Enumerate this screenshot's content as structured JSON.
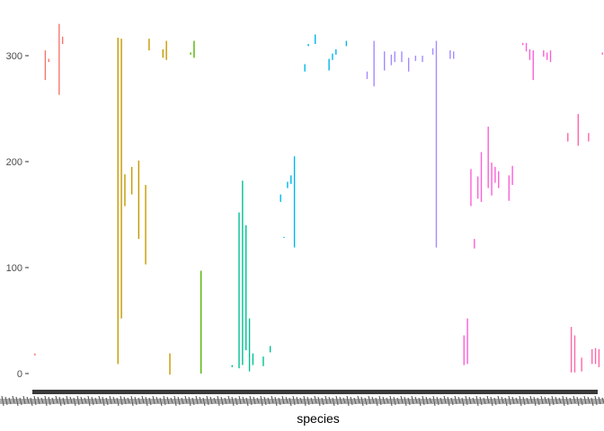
{
  "chart_data": {
    "type": "range",
    "title": "",
    "xlabel": "species",
    "ylabel": "",
    "ylim": [
      -10,
      330
    ],
    "yticks": [
      0,
      100,
      200,
      300
    ],
    "grid": false,
    "legend": "none",
    "x_tick_labels_overplotted": true,
    "series": [
      {
        "color": "#F8766D",
        "segments": [
          [
            1,
            17,
            19
          ],
          [
            4,
            277,
            305
          ],
          [
            5,
            294,
            297
          ],
          [
            8,
            263,
            330
          ],
          [
            9,
            311,
            318
          ]
        ]
      },
      {
        "color": "#C49A00",
        "segments": [
          [
            25,
            9,
            317
          ],
          [
            26,
            52,
            316
          ],
          [
            27,
            158,
            188
          ],
          [
            29,
            169,
            195
          ],
          [
            31,
            127,
            201
          ],
          [
            33,
            103,
            178
          ],
          [
            34,
            305,
            316
          ],
          [
            38,
            298,
            306
          ],
          [
            39,
            296,
            314
          ],
          [
            40,
            -1,
            19
          ]
        ]
      },
      {
        "color": "#53B400",
        "segments": [
          [
            46,
            301,
            303
          ],
          [
            47,
            298,
            314
          ],
          [
            49,
            0,
            97
          ]
        ]
      },
      {
        "color": "#00C094",
        "segments": [
          [
            58,
            6,
            8
          ],
          [
            60,
            5,
            152
          ],
          [
            61,
            8,
            182
          ],
          [
            62,
            22,
            140
          ],
          [
            63,
            2,
            52
          ],
          [
            64,
            8,
            19
          ],
          [
            67,
            7,
            16
          ],
          [
            69,
            20,
            26
          ]
        ]
      },
      {
        "color": "#00B6EB",
        "segments": [
          [
            72,
            162,
            169
          ],
          [
            73,
            128,
            129
          ],
          [
            74,
            175,
            181
          ],
          [
            75,
            179,
            187
          ],
          [
            76,
            119,
            205
          ],
          [
            79,
            285,
            292
          ],
          [
            80,
            309,
            311
          ],
          [
            82,
            311,
            320
          ],
          [
            86,
            286,
            297
          ],
          [
            87,
            296,
            302
          ],
          [
            88,
            301,
            306
          ],
          [
            91,
            309,
            314
          ]
        ]
      },
      {
        "color": "#A58AFF",
        "segments": [
          [
            97,
            278,
            285
          ],
          [
            99,
            271,
            314
          ],
          [
            102,
            286,
            304
          ],
          [
            104,
            291,
            301
          ],
          [
            105,
            294,
            304
          ],
          [
            107,
            294,
            304
          ],
          [
            109,
            285,
            298
          ],
          [
            111,
            295,
            300
          ],
          [
            113,
            294,
            300
          ],
          [
            116,
            301,
            307
          ],
          [
            117,
            119,
            314
          ],
          [
            121,
            297,
            305
          ],
          [
            122,
            297,
            304
          ]
        ]
      },
      {
        "color": "#FB61D7",
        "segments": [
          [
            125,
            8,
            36
          ],
          [
            126,
            9,
            52
          ],
          [
            127,
            158,
            193
          ],
          [
            128,
            118,
            127
          ],
          [
            129,
            165,
            186
          ],
          [
            130,
            162,
            209
          ],
          [
            132,
            175,
            233
          ],
          [
            133,
            168,
            199
          ],
          [
            134,
            180,
            195
          ],
          [
            135,
            175,
            191
          ],
          [
            138,
            163,
            187
          ],
          [
            139,
            178,
            196
          ],
          [
            142,
            310,
            312
          ],
          [
            143,
            304,
            312
          ],
          [
            144,
            296,
            306
          ],
          [
            145,
            277,
            305
          ],
          [
            148,
            299,
            305
          ],
          [
            149,
            296,
            303
          ],
          [
            150,
            294,
            305
          ]
        ]
      },
      {
        "color": "#FF66A8",
        "segments": [
          [
            155,
            219,
            227
          ],
          [
            156,
            1,
            44
          ],
          [
            157,
            1,
            36
          ],
          [
            158,
            215,
            245
          ],
          [
            159,
            2,
            15
          ],
          [
            161,
            219,
            227
          ],
          [
            162,
            9,
            23
          ],
          [
            163,
            9,
            24
          ],
          [
            164,
            6,
            23
          ],
          [
            165,
            301,
            303
          ]
        ]
      }
    ]
  }
}
